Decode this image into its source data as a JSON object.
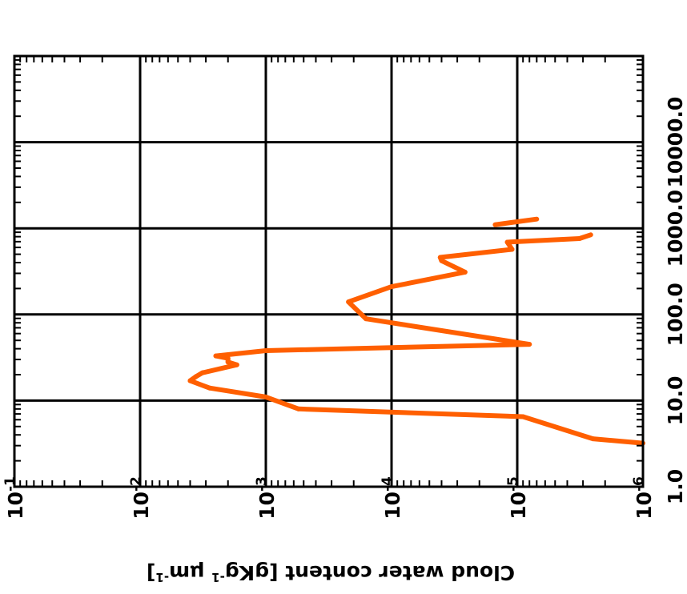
{
  "chart_data": {
    "type": "line",
    "orientation": "rotated-90",
    "ylabel": "Cloud water content [gKg",
    "ylabel_sup1": "-1",
    "ylabel_mid": " ",
    "ylabel_mu": "μm",
    "ylabel_sup2": "-1",
    "ylabel_end": "]",
    "x_scale": "log",
    "y_scale": "log",
    "xlim": [
      1.0,
      100000.0
    ],
    "ylim": [
      1e-06,
      0.1
    ],
    "grid": true,
    "x_tick_labels": [
      "1.0",
      "10.0",
      "100.0",
      "1000.0",
      "10000.0"
    ],
    "x_tick_values": [
      1,
      10,
      100,
      1000,
      10000
    ],
    "y_tick_base": "10",
    "y_tick_exponents": [
      "-6",
      "-5",
      "-4",
      "-3",
      "-2",
      "-1"
    ],
    "y_tick_values": [
      1e-06,
      1e-05,
      0.0001,
      0.001,
      0.01,
      0.1
    ],
    "series": [
      {
        "color": "#ff5f00",
        "points": [
          [
            3.2,
            1e-06
          ],
          [
            3.6,
            2.5e-06
          ],
          [
            6.5,
            9e-06
          ],
          [
            8.0,
            0.00055
          ],
          [
            11.0,
            0.001
          ],
          [
            14.0,
            0.0028
          ],
          [
            17.0,
            0.004
          ],
          [
            19.0,
            0.0036
          ],
          [
            21.0,
            0.0032
          ],
          [
            26.0,
            0.0017
          ],
          [
            28.0,
            0.002
          ],
          [
            31.0,
            0.002
          ],
          [
            33.0,
            0.0025
          ],
          [
            38.0,
            0.001
          ],
          [
            45.0,
            8e-06
          ],
          [
            89.0,
            0.00016
          ],
          [
            140.0,
            0.00022
          ],
          [
            210.0,
            0.0001
          ],
          [
            310.0,
            2.6e-05
          ],
          [
            420.0,
            4e-05
          ],
          [
            460.0,
            4.1e-05
          ],
          [
            570.0,
            1.1e-05
          ],
          [
            690.0,
            1.2e-05
          ],
          [
            760.0,
            3.2e-06
          ],
          [
            840.0,
            2.6e-06
          ]
        ]
      },
      {
        "color": "#ff5f00",
        "points": [
          [
            1100.0,
            1.5e-05
          ],
          [
            1280.0,
            7e-06
          ]
        ]
      }
    ]
  }
}
